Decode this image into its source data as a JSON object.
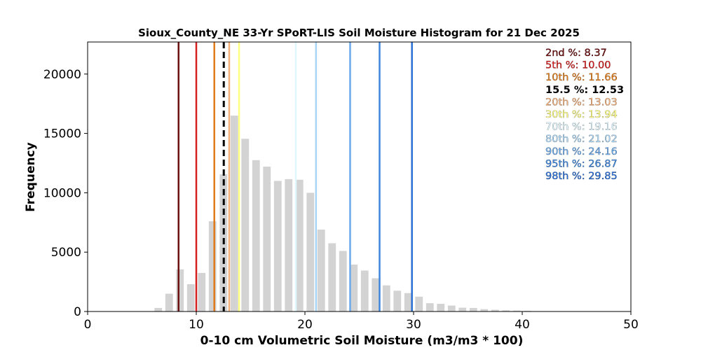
{
  "chart_data": {
    "type": "bar",
    "title": "Sioux_County_NE 33-Yr SPoRT-LIS Soil Moisture Histogram for 21 Dec 2025",
    "xlabel": "0-10 cm Volumetric Soil Moisture (m3/m3 * 100)",
    "ylabel": "Frequency",
    "xlim": [
      0,
      50
    ],
    "ylim": [
      0,
      22700
    ],
    "xticks": [
      "0",
      "10",
      "20",
      "30",
      "40",
      "50"
    ],
    "yticks": [
      "0",
      "5000",
      "10000",
      "15000",
      "20000"
    ],
    "grid": false,
    "bar_color": "#d3d3d3",
    "bin_width": 1,
    "bin_starts": [
      6,
      7,
      8,
      9,
      10,
      11,
      12,
      13,
      14,
      15,
      16,
      17,
      18,
      19,
      20,
      21,
      22,
      23,
      24,
      25,
      26,
      27,
      28,
      29,
      30,
      31,
      32,
      33,
      34,
      35,
      36,
      37,
      38,
      39,
      40,
      41
    ],
    "values": [
      300,
      1500,
      3550,
      2300,
      3250,
      7600,
      11550,
      16500,
      14550,
      12750,
      12200,
      11000,
      11150,
      11100,
      10000,
      6900,
      5750,
      5100,
      3950,
      3450,
      2800,
      2200,
      1750,
      1550,
      1250,
      700,
      650,
      500,
      320,
      300,
      200,
      150,
      100,
      80,
      60,
      30
    ],
    "percentile_lines": [
      {
        "label": "2nd %: 8.37",
        "x": 8.37,
        "color": "#6b0f0f",
        "dashed": false
      },
      {
        "label": "5th %: 10.00",
        "x": 10.0,
        "color": "#d62020",
        "dashed": false
      },
      {
        "label": "10th %: 11.66",
        "x": 11.66,
        "color": "#e07b1a",
        "dashed": false
      },
      {
        "label": "15.5 %: 12.53",
        "x": 12.53,
        "color": "#000000",
        "dashed": true
      },
      {
        "label": "20th %: 13.03",
        "x": 13.03,
        "color": "#f4b07a",
        "dashed": false
      },
      {
        "label": "30th %: 13.94",
        "x": 13.94,
        "color": "#ffff80",
        "dashed": false
      },
      {
        "label": "70th %: 19.16",
        "x": 19.16,
        "color": "#e0f7ff",
        "dashed": false
      },
      {
        "label": "80th %: 21.02",
        "x": 21.02,
        "color": "#a8d4f5",
        "dashed": false
      },
      {
        "label": "90th %: 24.16",
        "x": 24.16,
        "color": "#6aa9ea",
        "dashed": false
      },
      {
        "label": "95th %: 26.87",
        "x": 26.87,
        "color": "#3d86dc",
        "dashed": false
      },
      {
        "label": "98th %: 29.85",
        "x": 29.85,
        "color": "#2a6fd4",
        "dashed": false
      }
    ],
    "legend_placement": "top-right"
  }
}
